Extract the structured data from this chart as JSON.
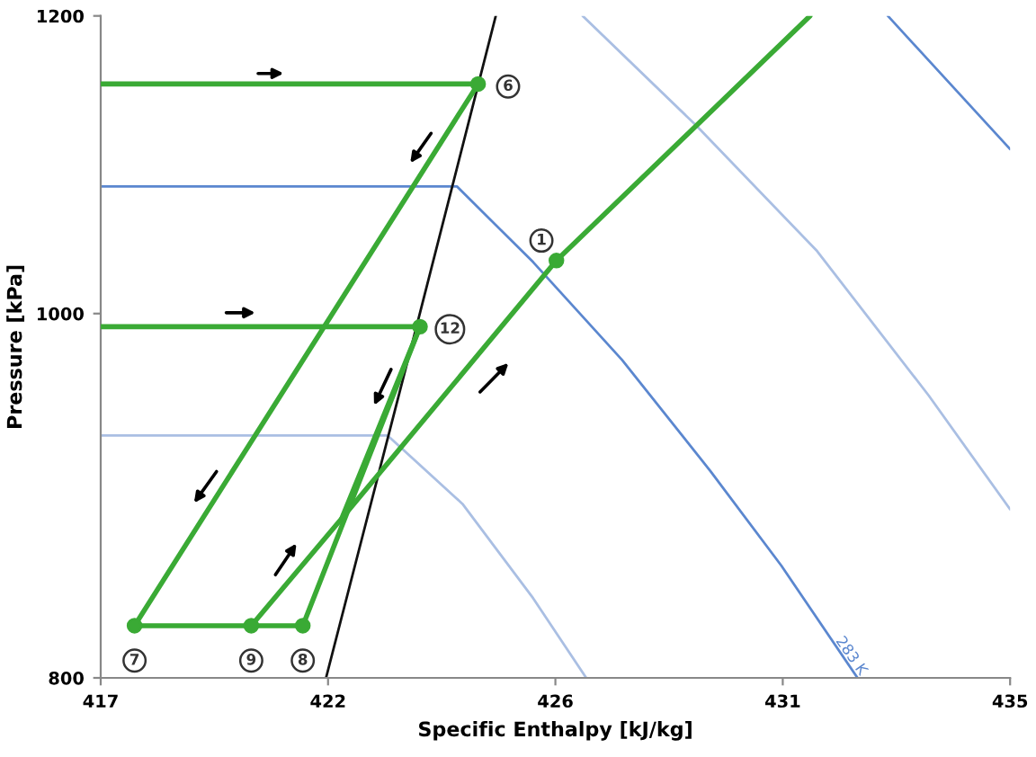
{
  "chart_data": {
    "type": "line",
    "xlabel": "Specific Enthalpy [kJ/kg]",
    "ylabel": "Pressure [kPa]",
    "xlim": [
      417,
      435
    ],
    "ylim": [
      800,
      1200
    ],
    "log": "y",
    "xticks": [
      417,
      {
        "value": 421.5,
        "label": "422"
      },
      426,
      {
        "value": 430.5,
        "label": "431"
      },
      435
    ],
    "yticks": [
      800,
      1000,
      1200
    ],
    "grid": false,
    "legend": false,
    "series": [
      {
        "color": "#aabfe3",
        "x": [
          417,
          422.68,
          424.16,
          425.56,
          426.61
        ],
        "values": [
          928,
          928,
          890,
          840,
          800
        ]
      },
      {
        "type": "line",
        "name": "283 K",
        "color": "#5b87cf",
        "x": [
          417,
          424.05,
          425.56,
          427.32,
          429.07,
          430.47,
          431.98
        ],
        "values": [
          1081,
          1081,
          1032,
          972,
          908,
          857,
          800
        ]
      },
      {
        "type": "line",
        "color": "#aabfe3",
        "x": [
          426.54,
          428.79,
          431.18,
          433.39,
          435
        ],
        "values": [
          1200,
          1122,
          1039,
          951,
          887
        ]
      },
      {
        "type": "line",
        "color": "#5b87cf",
        "x": [
          432.58,
          435
        ],
        "values": [
          1200,
          1106
        ]
      },
      {
        "type": "line",
        "color": "#111111",
        "x": [
          421.46,
          423.25,
          424.82
        ],
        "values": [
          800,
          992,
          1200
        ]
      },
      {
        "type": "line",
        "color": "#3aaa35",
        "x": [
          417,
          424.47,
          417.67,
          421.0,
          423.32,
          417
        ],
        "values": [
          1151,
          1151,
          826,
          826,
          992,
          992
        ]
      },
      {
        "type": "line",
        "color": "#3aaa35",
        "x": [
          419.98,
          421.77,
          426.02,
          431.04
        ],
        "values": [
          826,
          882,
          1033,
          1200
        ]
      },
      {
        "type": "line",
        "color": "#3aaa35",
        "x": [
          421.77,
          423.32
        ],
        "values": [
          882,
          992
        ]
      },
      {
        "type": "scatter",
        "marker": "circle",
        "color": "#3aaa35",
        "x": [
          424.47,
          423.32,
          426.02,
          417.67,
          419.98,
          421.0
        ],
        "values": [
          1151,
          992,
          1033,
          826,
          826,
          826
        ]
      }
    ],
    "annotations": [
      {
        "text": "6",
        "x": 424.47,
        "y": 1151
      },
      {
        "text": "12",
        "x": 423.32,
        "y": 992
      },
      {
        "text": "1",
        "x": 426.02,
        "y": 1033
      },
      {
        "text": "7",
        "x": 417.67,
        "y": 826
      },
      {
        "text": "9",
        "x": 419.98,
        "y": 826
      },
      {
        "text": "8",
        "x": 421.0,
        "y": 826
      }
    ]
  }
}
